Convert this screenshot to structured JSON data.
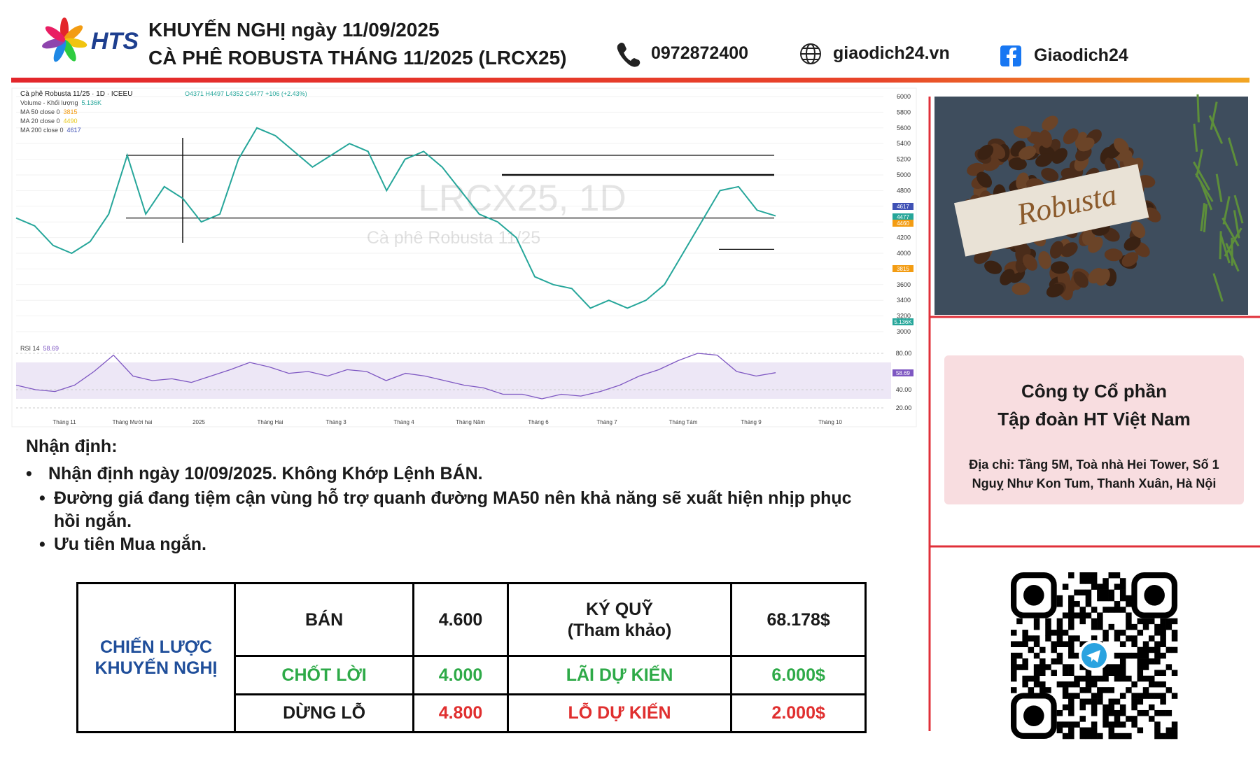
{
  "header": {
    "logo": "HTS",
    "title_line1": "KHUYẾN NGHỊ ngày 11/09/2025",
    "title_line2": "CÀ PHÊ ROBUSTA THÁNG 11/2025 (LRCX25)",
    "phone": "0972872400",
    "website": "giaodich24.vn",
    "facebook": "Giaodich24"
  },
  "chart": {
    "title": "Cà phê Robusta 11/25 · 1D · ICEEU",
    "ohlc": "O4371 H4497 L4352 C4477 +106 (+2.43%)",
    "legend": [
      {
        "name": "Volume - Khối lượng",
        "value": "5.136K"
      },
      {
        "name": "MA 50 close 0",
        "value": "3815"
      },
      {
        "name": "MA 20 close 0",
        "value": "4490"
      },
      {
        "name": "MA 200 close 0",
        "value": "4617"
      }
    ],
    "watermark": "LRCX25, 1D",
    "watermark_sub": "Cà phê Robusta 11/25",
    "ylim": [
      3000,
      6000
    ],
    "yticks": [
      6000,
      5800,
      5600,
      5400,
      5200,
      5000,
      4800,
      4600,
      4400,
      4200,
      4000,
      3800,
      3600,
      3400,
      3200,
      3000
    ],
    "price_tags": [
      "4617",
      "4477",
      "4460",
      "3815",
      "5.136K"
    ],
    "close": [
      4450,
      4350,
      4100,
      4000,
      4150,
      4500,
      5250,
      4500,
      4850,
      4700,
      4400,
      4500,
      5200,
      5600,
      5500,
      5300,
      5100,
      5250,
      5400,
      5300,
      4800,
      5200,
      5300,
      5100,
      4800,
      4500,
      4400,
      4200,
      3700,
      3600,
      3550,
      3300,
      3400,
      3300,
      3400,
      3600,
      4000,
      4400,
      4800,
      4850,
      4550,
      4477
    ],
    "levels": [
      5250,
      5000,
      4450,
      4050
    ],
    "rsi_label": "RSI 14",
    "rsi_value": "58.69",
    "rsi_lim": [
      20,
      80
    ],
    "rsi_ticks": [
      {
        "value": 80,
        "label": "80.00"
      },
      {
        "value": 40,
        "label": "40.00"
      },
      {
        "value": 20,
        "label": "20.00"
      }
    ],
    "rsi": [
      45,
      40,
      38,
      45,
      60,
      78,
      55,
      50,
      52,
      48,
      55,
      62,
      70,
      65,
      58,
      60,
      55,
      62,
      60,
      50,
      58,
      55,
      50,
      45,
      42,
      35,
      35,
      30,
      35,
      33,
      38,
      45,
      55,
      62,
      72,
      80,
      78,
      60,
      55,
      58.69
    ],
    "months": [
      "Tháng 11",
      "Tháng Mười hai",
      "2025",
      "Tháng Hai",
      "Tháng 3",
      "Tháng 4",
      "Tháng Năm",
      "Tháng 6",
      "Tháng 7",
      "Tháng Tám",
      "Tháng 9",
      "Tháng 10"
    ]
  },
  "analysis": {
    "heading": "Nhận định:",
    "bullet": "Nhận định ngày 10/09/2025. Không Khớp Lệnh BÁN.",
    "sub_bullets": [
      "Đường giá đang tiệm cận vùng hỗ trợ quanh đường MA50 nên khả năng sẽ xuất hiện nhịp phục",
      "hồi ngắn.",
      "Ưu tiên Mua ngắn."
    ]
  },
  "table": {
    "label": [
      "CHIẾN LƯỢC",
      "KHUYẾN NGHỊ"
    ],
    "rows": [
      [
        "BÁN",
        "4.600",
        [
          "KÝ QUỸ",
          "(Tham khảo)"
        ],
        "68.178$"
      ],
      [
        "CHỐT LỜI",
        "4.000",
        "LÃI DỰ KIẾN",
        "6.000$"
      ],
      [
        "DỪNG LỖ",
        "4.800",
        "LỖ DỰ KIẾN",
        "2.000$"
      ]
    ]
  },
  "image_label": "Robusta",
  "company": {
    "line1": "Công ty Cổ phần",
    "line2": "Tập đoàn HT Việt Nam",
    "address1": "Địa chỉ: Tầng 5M, Toà nhà Hei Tower, Số 1",
    "address2": "Nguỵ Như Kon Tum, Thanh Xuân, Hà Nội"
  }
}
